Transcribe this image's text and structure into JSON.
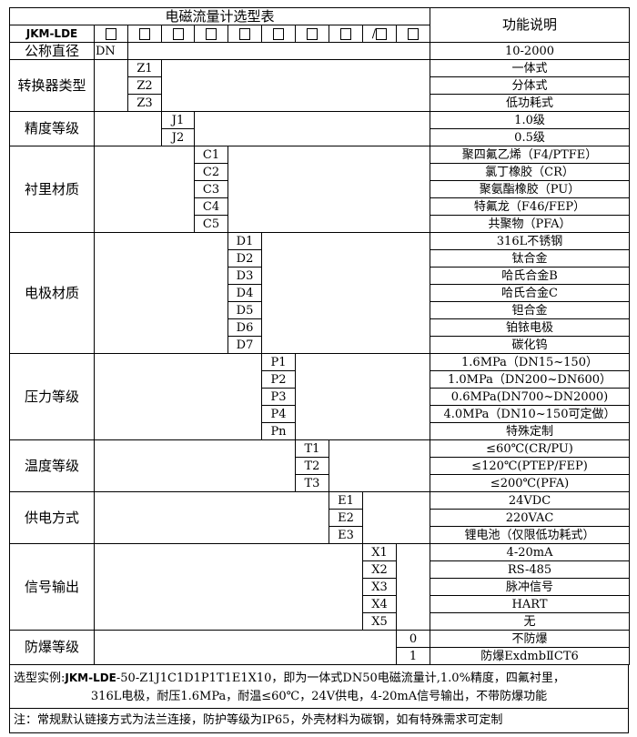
{
  "header": {
    "title": "电磁流量计选型表",
    "function_title": "功能说明",
    "model": "JKM-LDE",
    "box_glyph": "□",
    "slash_box": "/□"
  },
  "sections": [
    {
      "label": "公称直径",
      "col": 1,
      "rows": [
        {
          "code": "DN",
          "desc": "10-2000"
        }
      ]
    },
    {
      "label": "转换器类型",
      "col": 2,
      "rows": [
        {
          "code": "Z1",
          "desc": "一体式"
        },
        {
          "code": "Z2",
          "desc": "分体式"
        },
        {
          "code": "Z3",
          "desc": "低功耗式"
        }
      ]
    },
    {
      "label": "精度等级",
      "col": 3,
      "rows": [
        {
          "code": "J1",
          "desc": "1.0级"
        },
        {
          "code": "J2",
          "desc": "0.5级"
        }
      ]
    },
    {
      "label": "衬里材质",
      "col": 4,
      "rows": [
        {
          "code": "C1",
          "desc": "聚四氟乙烯（F4/PTFE）"
        },
        {
          "code": "C2",
          "desc": "氯丁橡胶（CR）"
        },
        {
          "code": "C3",
          "desc": "聚氨酯橡胶（PU）"
        },
        {
          "code": "C4",
          "desc": "特氟龙（F46/FEP）"
        },
        {
          "code": "C5",
          "desc": "共聚物（PFA）"
        }
      ]
    },
    {
      "label": "电极材质",
      "col": 5,
      "rows": [
        {
          "code": "D1",
          "desc": "316L不锈钢"
        },
        {
          "code": "D2",
          "desc": "钛合金"
        },
        {
          "code": "D3",
          "desc": "哈氏合金B"
        },
        {
          "code": "D4",
          "desc": "哈氏合金C"
        },
        {
          "code": "D5",
          "desc": "钽合金"
        },
        {
          "code": "D6",
          "desc": "铂铱电极"
        },
        {
          "code": "D7",
          "desc": "碳化钨"
        }
      ]
    },
    {
      "label": "压力等级",
      "col": 6,
      "rows": [
        {
          "code": "P1",
          "desc": "1.6MPa（DN15~150）"
        },
        {
          "code": "P2",
          "desc": "1.0MPa（DN200~DN600）"
        },
        {
          "code": "P3",
          "desc": "0.6MPa(DN700~DN2000)"
        },
        {
          "code": "P4",
          "desc": "4.0MPa（DN10~150可定做）"
        },
        {
          "code": "Pn",
          "desc": "特殊定制"
        }
      ]
    },
    {
      "label": "温度等级",
      "col": 7,
      "rows": [
        {
          "code": "T1",
          "desc": "≤60℃(CR/PU)"
        },
        {
          "code": "T2",
          "desc": "≤120℃(PTEP/FEP)"
        },
        {
          "code": "T3",
          "desc": "≤200℃(PFA)"
        }
      ]
    },
    {
      "label": "供电方式",
      "col": 8,
      "rows": [
        {
          "code": "E1",
          "desc": "24VDC"
        },
        {
          "code": "E2",
          "desc": "220VAC"
        },
        {
          "code": "E3",
          "desc": "锂电池（仅限低功耗式）"
        }
      ]
    },
    {
      "label": "信号输出",
      "col": 9,
      "rows": [
        {
          "code": "X1",
          "desc": "4-20mA"
        },
        {
          "code": "X2",
          "desc": "RS-485"
        },
        {
          "code": "X3",
          "desc": "脉冲信号"
        },
        {
          "code": "X4",
          "desc": "HART"
        },
        {
          "code": "X5",
          "desc": "无"
        }
      ]
    },
    {
      "label": "防爆等级",
      "col": 10,
      "rows": [
        {
          "code": "0",
          "desc": "不防爆"
        },
        {
          "code": "1",
          "desc": "防爆ExdmbⅡCT6"
        }
      ]
    }
  ],
  "footer": {
    "example_label": "选型实例:",
    "example_model": "JKM-LDE",
    "example_line1_rest": "-50-Z1J1C1D1P1T1E1X10，即为一体式DN50电磁流量计,1.0%精度，四氟衬里，",
    "example_line2": "316L电极，耐压1.6MPa，耐温≤60℃，24V供电，4-20mA信号输出，不带防爆功能",
    "note": "注：常规默认链接方式为法兰连接，防护等级为IP65，外壳材料为碳钢，如有特殊需求可定制"
  }
}
